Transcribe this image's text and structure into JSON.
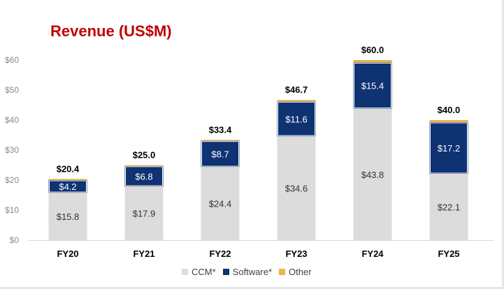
{
  "chart_data": {
    "type": "bar",
    "stacked": true,
    "title": "Revenue (US$M)",
    "categories": [
      "FY20",
      "FY21",
      "FY22",
      "FY23",
      "FY24",
      "FY25"
    ],
    "series": [
      {
        "name": "CCM*",
        "color": "#dcdcdc",
        "values": [
          15.8,
          17.9,
          24.4,
          34.6,
          43.8,
          22.1
        ],
        "labels": [
          "$15.8",
          "$17.9",
          "$24.4",
          "$34.6",
          "$43.8",
          "$22.1"
        ]
      },
      {
        "name": "Software*",
        "color": "#0e3272",
        "values": [
          4.2,
          6.8,
          8.7,
          11.6,
          15.4,
          17.2
        ],
        "labels": [
          "$4.2",
          "$6.8",
          "$8.7",
          "$11.6",
          "$15.4",
          "$17.2"
        ]
      },
      {
        "name": "Other",
        "color": "#e8b54a",
        "values": [
          0.4,
          0.3,
          0.3,
          0.5,
          0.8,
          0.7
        ],
        "labels": [
          "",
          "",
          "",
          "",
          "",
          ""
        ]
      }
    ],
    "totals": [
      "$20.4",
      "$25.0",
      "$33.4",
      "$46.7",
      "$60.0",
      "$40.0"
    ],
    "y_ticks": [
      0,
      10,
      20,
      30,
      40,
      50,
      60
    ],
    "y_tick_labels": [
      "$0",
      "$10",
      "$20",
      "$30",
      "$40",
      "$50",
      "$60"
    ],
    "ylim": [
      0,
      60
    ],
    "xlabel": "",
    "ylabel": "",
    "legend_position": "bottom"
  }
}
